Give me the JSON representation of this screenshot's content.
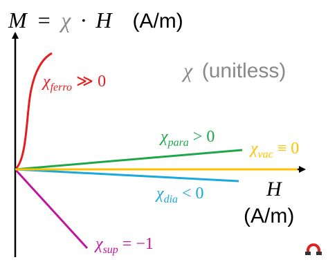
{
  "equation": {
    "lhs": "M",
    "op": "=",
    "chi": "χ",
    "dot": "·",
    "rhs": "H",
    "unit": "(A/m)"
  },
  "chi_note": {
    "symbol": "χ",
    "text": "(unitless)"
  },
  "x_axis": {
    "symbol": "H",
    "unit": "(A/m)"
  },
  "labels": [
    {
      "symbol": "χ",
      "sub": "ferro",
      "relation": "≫ 0"
    },
    {
      "symbol": "χ",
      "sub": "para",
      "relation": "> 0"
    },
    {
      "symbol": "χ",
      "sub": "vac",
      "relation": "≡ 0"
    },
    {
      "symbol": "χ",
      "sub": "dia",
      "relation": "< 0"
    },
    {
      "symbol": "χ",
      "sub": "sup",
      "relation": "= −1"
    }
  ]
}
